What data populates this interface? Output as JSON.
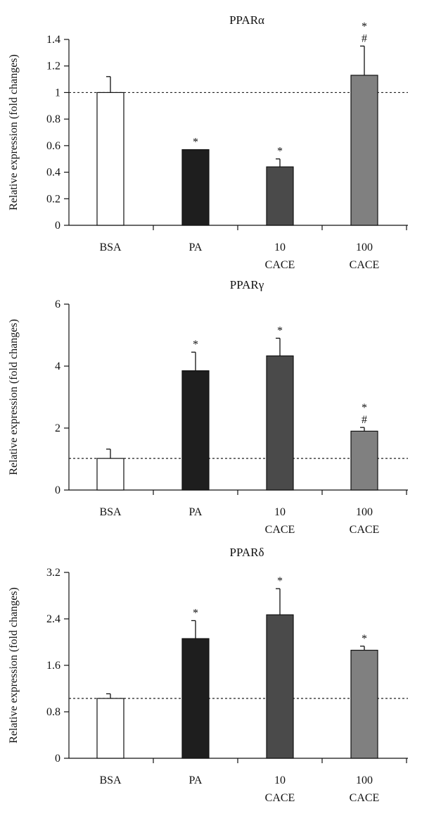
{
  "chart_data": [
    {
      "type": "bar",
      "title": "PPARα",
      "ylabel": "Relative expression (fold changes)",
      "categories": [
        [
          "BSA"
        ],
        [
          "PA"
        ],
        [
          "10",
          "CACE"
        ],
        [
          "100",
          "CACE"
        ]
      ],
      "values": [
        1.0,
        0.57,
        0.44,
        1.13
      ],
      "errors": [
        0.12,
        0.0,
        0.06,
        0.22
      ],
      "significance": [
        [],
        [
          "*"
        ],
        [
          "*"
        ],
        [
          "*",
          "#"
        ]
      ],
      "bar_colors": [
        "#ffffff",
        "#1e1e1e",
        "#4a4a4a",
        "#808080"
      ],
      "ylim": [
        0,
        1.4
      ],
      "yticks": [
        0,
        0.2,
        0.4,
        0.6,
        0.8,
        1,
        1.2,
        1.4
      ],
      "ytick_labels": [
        "0",
        "0.2",
        "0.4",
        "0.6",
        "0.8",
        "1",
        "1.2",
        "1.4"
      ],
      "reference_line": 1.0
    },
    {
      "type": "bar",
      "title": "PPARγ",
      "ylabel": "Relative expression (fold changes)",
      "categories": [
        [
          "BSA"
        ],
        [
          "PA"
        ],
        [
          "10",
          "CACE"
        ],
        [
          "100",
          "CACE"
        ]
      ],
      "values": [
        1.02,
        3.85,
        4.33,
        1.9
      ],
      "errors": [
        0.3,
        0.6,
        0.57,
        0.12
      ],
      "significance": [
        [],
        [
          "*"
        ],
        [
          "*"
        ],
        [
          "*",
          "#"
        ]
      ],
      "bar_colors": [
        "#ffffff",
        "#1e1e1e",
        "#4a4a4a",
        "#808080"
      ],
      "ylim": [
        0,
        6
      ],
      "yticks": [
        0,
        2,
        4,
        6
      ],
      "ytick_labels": [
        "0",
        "2",
        "4",
        "6"
      ],
      "reference_line": 1.02
    },
    {
      "type": "bar",
      "title": "PPARδ",
      "ylabel": "Relative expression (fold changes)",
      "categories": [
        [
          "BSA"
        ],
        [
          "PA"
        ],
        [
          "10",
          "CACE"
        ],
        [
          "100",
          "CACE"
        ]
      ],
      "values": [
        1.03,
        2.06,
        2.47,
        1.86
      ],
      "errors": [
        0.08,
        0.31,
        0.45,
        0.07
      ],
      "significance": [
        [],
        [
          "*"
        ],
        [
          "*"
        ],
        [
          "*"
        ]
      ],
      "bar_colors": [
        "#ffffff",
        "#1e1e1e",
        "#4a4a4a",
        "#808080"
      ],
      "ylim": [
        0,
        3.2
      ],
      "yticks": [
        0,
        0.8,
        1.6,
        2.4,
        3.2
      ],
      "ytick_labels": [
        "0",
        "0.8",
        "1.6",
        "2.4",
        "3.2"
      ],
      "reference_line": 1.03
    }
  ]
}
